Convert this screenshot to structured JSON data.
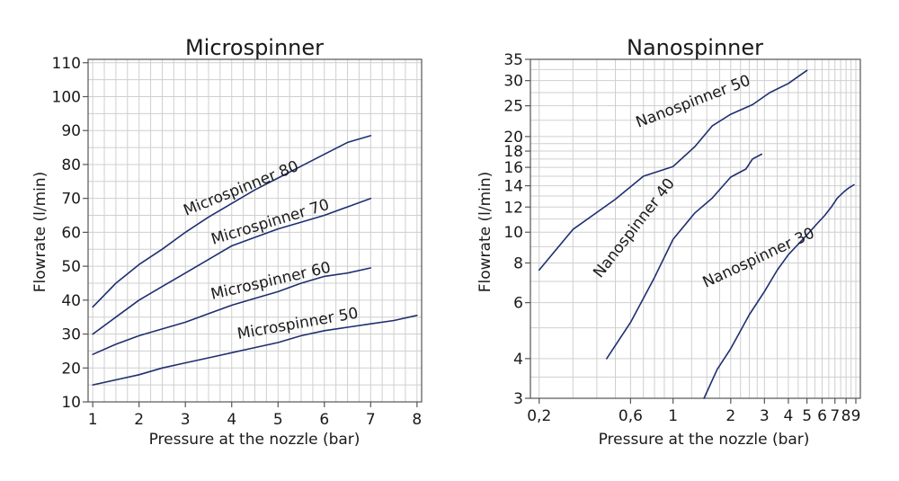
{
  "chart_data": [
    {
      "type": "line",
      "title": "Microspinner",
      "xlabel": "Pressure at the nozzle (bar)",
      "ylabel": "Flowrate (l/min)",
      "x_scale": "linear",
      "y_scale": "linear",
      "xlim": [
        0.9,
        8.1
      ],
      "ylim": [
        10,
        111
      ],
      "x_ticks": [
        1,
        2,
        3,
        4,
        5,
        6,
        7,
        8
      ],
      "x_tick_labels": [
        "1",
        "2",
        "3",
        "4",
        "5",
        "6",
        "7",
        "8"
      ],
      "y_ticks": [
        10,
        20,
        30,
        40,
        50,
        60,
        70,
        80,
        90,
        100,
        110
      ],
      "y_tick_labels": [
        "10",
        "20",
        "30",
        "40",
        "50",
        "60",
        "70",
        "80",
        "90",
        "100",
        "110"
      ],
      "grid": true,
      "legend": "none (series labelled inline)",
      "series": [
        {
          "name": "Microspinner 80",
          "x": [
            1,
            1.5,
            2,
            2.5,
            3,
            3.5,
            4,
            4.5,
            5,
            5.5,
            6,
            6.5,
            7
          ],
          "y": [
            38,
            45,
            50.5,
            55,
            60,
            64.5,
            68.5,
            72.5,
            76,
            79.5,
            83,
            86.5,
            88.5
          ]
        },
        {
          "name": "Microspinner 70",
          "x": [
            1,
            1.5,
            2,
            2.5,
            3,
            3.5,
            4,
            4.5,
            5,
            5.5,
            6,
            6.5,
            7
          ],
          "y": [
            30,
            35,
            40,
            44,
            48,
            52,
            56,
            58.5,
            61,
            63,
            65,
            67.5,
            70
          ]
        },
        {
          "name": "Microspinner 60",
          "x": [
            1,
            1.5,
            2,
            2.5,
            3,
            3.5,
            4,
            4.5,
            5,
            5.5,
            6,
            6.5,
            7
          ],
          "y": [
            24,
            27,
            29.5,
            31.5,
            33.5,
            36,
            38.5,
            40.5,
            42.5,
            45,
            47,
            48,
            49.5
          ]
        },
        {
          "name": "Microspinner 50",
          "x": [
            1,
            1.5,
            2,
            2.5,
            3,
            3.5,
            4,
            4.5,
            5,
            5.5,
            6,
            6.5,
            7,
            7.5,
            8
          ],
          "y": [
            15,
            16.5,
            18,
            20,
            21.5,
            23,
            24.5,
            26,
            27.5,
            29.5,
            31,
            32,
            33,
            34,
            35.5
          ]
        }
      ],
      "series_labels": [
        "Microspinner 80",
        "Microspinner 70",
        "Microspinner 60",
        "Microspinner 50"
      ]
    },
    {
      "type": "line",
      "title": "Nanospinner",
      "xlabel": "Pressure at the nozzle (bar)",
      "ylabel": "Flowrate (l/min)",
      "x_scale": "log",
      "y_scale": "log",
      "xlim": [
        0.18,
        9.5
      ],
      "ylim": [
        3,
        35
      ],
      "x_ticks": [
        0.2,
        0.6,
        1,
        2,
        3,
        4,
        5,
        6,
        7,
        8,
        9
      ],
      "x_tick_labels": [
        "0,2",
        "0,6",
        "1",
        "2",
        "3",
        "4",
        "5",
        "6",
        "7",
        "8",
        "9"
      ],
      "y_ticks": [
        3,
        4,
        6,
        8,
        10,
        12,
        14,
        16,
        18,
        20,
        25,
        30,
        35
      ],
      "y_tick_labels": [
        "3",
        "4",
        "6",
        "8",
        "10",
        "12",
        "14",
        "16",
        "18",
        "20",
        "25",
        "30",
        "35"
      ],
      "grid": true,
      "legend": "none (series labelled inline)",
      "series": [
        {
          "name": "Nanospinner 50",
          "x": [
            0.2,
            0.3,
            0.5,
            0.7,
            1.0,
            1.3,
            1.6,
            2.0,
            2.6,
            3.2,
            4.0,
            5.0
          ],
          "y": [
            7.6,
            10.2,
            12.7,
            15,
            16.1,
            18.6,
            21.6,
            23.5,
            25.2,
            27.5,
            29.4,
            32.3
          ]
        },
        {
          "name": "Nanospinner 40",
          "x": [
            0.45,
            0.6,
            0.8,
            1.0,
            1.3,
            1.6,
            2.0,
            2.4,
            2.6,
            2.9
          ],
          "y": [
            4,
            5.2,
            7.2,
            9.5,
            11.5,
            12.8,
            14.9,
            15.8,
            17,
            17.6
          ]
        },
        {
          "name": "Nanospinner 30",
          "x": [
            1.45,
            1.7,
            2.0,
            2.5,
            3.0,
            3.5,
            4.0,
            5.0,
            5.7,
            6.2,
            6.7,
            7.2,
            7.8,
            8.3,
            8.8
          ],
          "y": [
            3,
            3.7,
            4.3,
            5.5,
            6.5,
            7.6,
            8.5,
            9.8,
            10.7,
            11.3,
            12,
            12.8,
            13.4,
            13.8,
            14.1
          ]
        }
      ],
      "series_labels": [
        "Nanospinner 50",
        "Nanospinner 40",
        "Nanospinner 30"
      ]
    }
  ]
}
